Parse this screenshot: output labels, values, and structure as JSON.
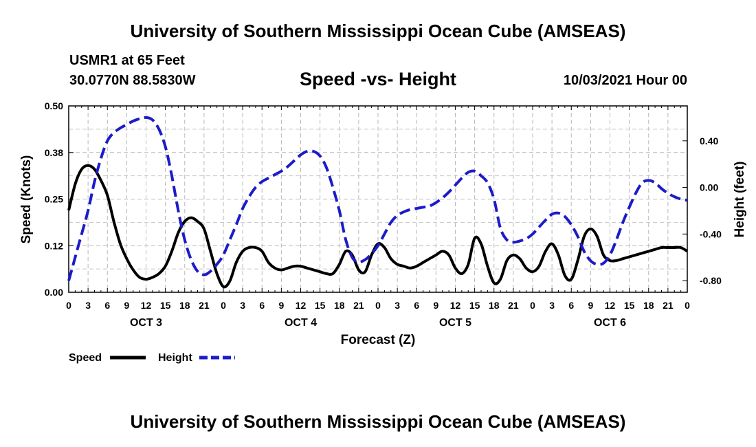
{
  "header": {
    "title_top": "University of Southern Mississippi Ocean Cube (AMSEAS)",
    "station": "USMR1 at 65 Feet",
    "coords": "30.0770N  88.5830W",
    "subtitle": "Speed -vs- Height",
    "datetime": "10/03/2021 Hour 00"
  },
  "footer": {
    "title_bottom": "University of Southern Mississippi Ocean Cube (AMSEAS)"
  },
  "chart_data": {
    "type": "line",
    "xlabel": "Forecast (Z)",
    "ylabel": "Speed (Knots)",
    "y2label": "Height (feet)",
    "x_range": [
      0,
      96
    ],
    "ylim": [
      0,
      0.5
    ],
    "y2lim": [
      -0.9,
      0.7
    ],
    "y_ticks": [
      "0.00",
      "0.12",
      "0.25",
      "0.38",
      "0.50"
    ],
    "y_tick_values": [
      0,
      0.125,
      0.25,
      0.375,
      0.5
    ],
    "y2_ticks": [
      "-0.80",
      "-0.40",
      "0.00",
      "0.40"
    ],
    "y2_tick_values": [
      -0.8,
      -0.4,
      0.0,
      0.4
    ],
    "x_tick_labels": [
      "0",
      "3",
      "6",
      "9",
      "12",
      "15",
      "18",
      "21",
      "0",
      "3",
      "6",
      "9",
      "12",
      "15",
      "18",
      "21",
      "0",
      "3",
      "6",
      "9",
      "12",
      "15",
      "18",
      "21",
      "0",
      "3",
      "6",
      "9",
      "12",
      "15",
      "18",
      "21",
      "0"
    ],
    "day_labels": [
      "OCT 3",
      "OCT 4",
      "OCT 5",
      "OCT 6"
    ],
    "grid": true,
    "legend_position": "bottom-left",
    "series": [
      {
        "name": "Speed",
        "color": "#000000",
        "style": "solid",
        "axis": "left",
        "x": [
          0,
          1,
          2,
          3,
          4,
          5,
          6,
          7,
          8,
          9,
          10,
          11,
          12,
          13,
          14,
          15,
          16,
          17,
          18,
          19,
          20,
          21,
          22,
          23,
          24,
          25,
          26,
          27,
          28,
          29,
          30,
          31,
          32,
          33,
          34,
          35,
          36,
          37,
          38,
          39,
          40,
          41,
          42,
          43,
          44,
          45,
          46,
          47,
          48,
          49,
          50,
          51,
          52,
          53,
          54,
          55,
          56,
          57,
          58,
          59,
          60,
          61,
          62,
          63,
          64,
          65,
          66,
          67,
          68,
          69,
          70,
          71,
          72,
          73,
          74,
          75,
          76,
          77,
          78,
          79,
          80,
          81,
          82,
          83,
          84,
          85,
          86,
          87,
          88,
          89,
          90,
          91,
          92,
          93,
          94,
          95,
          96
        ],
        "values": [
          0.22,
          0.29,
          0.33,
          0.34,
          0.33,
          0.3,
          0.26,
          0.19,
          0.13,
          0.09,
          0.06,
          0.04,
          0.035,
          0.04,
          0.05,
          0.07,
          0.11,
          0.16,
          0.19,
          0.2,
          0.19,
          0.17,
          0.11,
          0.05,
          0.015,
          0.03,
          0.08,
          0.11,
          0.12,
          0.12,
          0.11,
          0.08,
          0.065,
          0.06,
          0.065,
          0.07,
          0.07,
          0.065,
          0.06,
          0.055,
          0.05,
          0.05,
          0.075,
          0.11,
          0.1,
          0.06,
          0.055,
          0.1,
          0.13,
          0.12,
          0.09,
          0.075,
          0.07,
          0.065,
          0.07,
          0.08,
          0.09,
          0.1,
          0.11,
          0.1,
          0.065,
          0.05,
          0.075,
          0.145,
          0.13,
          0.07,
          0.025,
          0.035,
          0.085,
          0.1,
          0.09,
          0.065,
          0.055,
          0.07,
          0.11,
          0.13,
          0.1,
          0.045,
          0.035,
          0.085,
          0.15,
          0.17,
          0.15,
          0.1,
          0.085,
          0.085,
          0.09,
          0.095,
          0.1,
          0.105,
          0.11,
          0.115,
          0.12,
          0.12,
          0.12,
          0.12,
          0.11
        ]
      },
      {
        "name": "Height",
        "color": "#1c1cc8",
        "style": "dashed",
        "axis": "right",
        "x": [
          0,
          1,
          2,
          3,
          4,
          5,
          6,
          7,
          8,
          9,
          10,
          11,
          12,
          13,
          14,
          15,
          16,
          17,
          18,
          19,
          20,
          21,
          22,
          23,
          24,
          25,
          26,
          27,
          28,
          29,
          30,
          31,
          32,
          33,
          34,
          35,
          36,
          37,
          38,
          39,
          40,
          41,
          42,
          43,
          44,
          45,
          46,
          47,
          48,
          49,
          50,
          51,
          52,
          53,
          54,
          55,
          56,
          57,
          58,
          59,
          60,
          61,
          62,
          63,
          64,
          65,
          66,
          67,
          68,
          69,
          70,
          71,
          72,
          73,
          74,
          75,
          76,
          77,
          78,
          79,
          80,
          81,
          82,
          83,
          84,
          85,
          86,
          87,
          88,
          89,
          90,
          91,
          92,
          93,
          94,
          95,
          96
        ],
        "values": [
          -0.8,
          -0.6,
          -0.4,
          -0.2,
          0.05,
          0.25,
          0.4,
          0.47,
          0.51,
          0.54,
          0.57,
          0.59,
          0.6,
          0.58,
          0.5,
          0.35,
          0.1,
          -0.2,
          -0.45,
          -0.62,
          -0.72,
          -0.75,
          -0.72,
          -0.66,
          -0.58,
          -0.45,
          -0.32,
          -0.18,
          -0.08,
          0.0,
          0.05,
          0.08,
          0.11,
          0.14,
          0.18,
          0.23,
          0.28,
          0.31,
          0.31,
          0.27,
          0.17,
          0.0,
          -0.2,
          -0.45,
          -0.6,
          -0.64,
          -0.62,
          -0.57,
          -0.5,
          -0.4,
          -0.3,
          -0.24,
          -0.21,
          -0.19,
          -0.18,
          -0.17,
          -0.16,
          -0.13,
          -0.09,
          -0.04,
          0.02,
          0.08,
          0.13,
          0.14,
          0.1,
          0.04,
          -0.1,
          -0.35,
          -0.45,
          -0.47,
          -0.46,
          -0.44,
          -0.4,
          -0.34,
          -0.28,
          -0.23,
          -0.22,
          -0.25,
          -0.32,
          -0.42,
          -0.55,
          -0.63,
          -0.66,
          -0.65,
          -0.58,
          -0.45,
          -0.3,
          -0.17,
          -0.05,
          0.04,
          0.06,
          0.04,
          -0.01,
          -0.05,
          -0.08,
          -0.1,
          -0.11
        ]
      }
    ]
  }
}
